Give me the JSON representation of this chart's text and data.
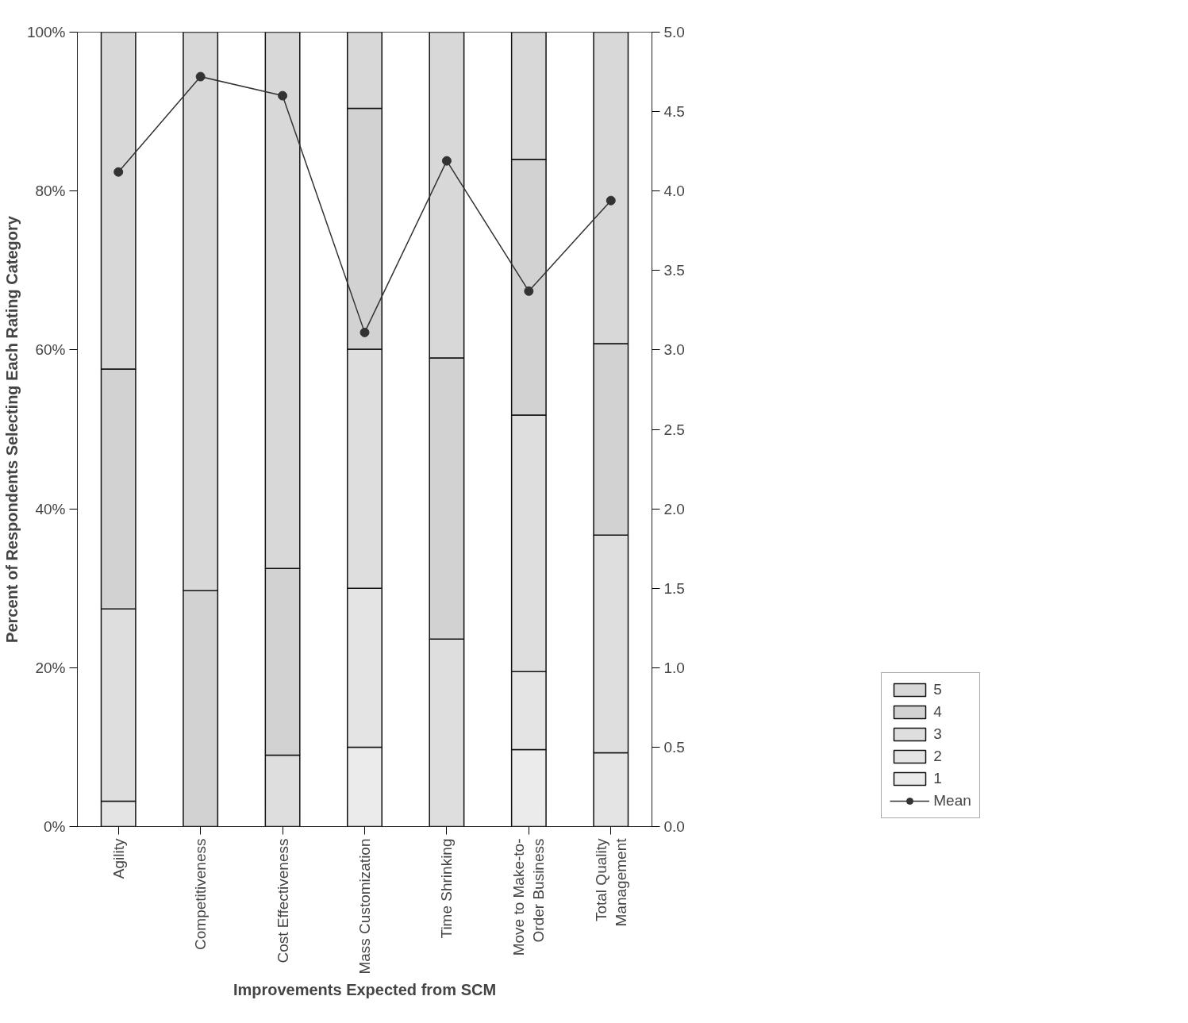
{
  "chart_data": {
    "type": "bar",
    "stacked": true,
    "xlabel": "Improvements Expected from SCM",
    "ylabel": "Percent of Respondents Selecting Each Rating Category",
    "categories": [
      "Agility",
      "Competitiveness",
      "Cost Effectiveness",
      "Mass Customization",
      "Time Shrinking",
      "Move to Make-to-Order Business",
      "Total Quality Management"
    ],
    "series": [
      {
        "name": "1",
        "color": "#ebebeb",
        "values": [
          0,
          0,
          0,
          10.0,
          0,
          9.7,
          0
        ]
      },
      {
        "name": "2",
        "color": "#e4e4e4",
        "values": [
          3.2,
          0,
          0,
          20.0,
          0,
          9.8,
          9.3
        ]
      },
      {
        "name": "3",
        "color": "#dedede",
        "values": [
          24.2,
          0,
          9.0,
          30.1,
          23.6,
          32.3,
          27.4
        ]
      },
      {
        "name": "4",
        "color": "#d2d2d2",
        "values": [
          30.2,
          29.7,
          23.5,
          30.3,
          35.4,
          32.2,
          24.1
        ]
      },
      {
        "name": "5",
        "color": "#d8d8d8",
        "values": [
          42.4,
          70.3,
          67.5,
          9.6,
          41.0,
          16.0,
          39.2
        ]
      },
      {
        "name": "Mean",
        "type": "line",
        "axis": "y2",
        "color": "#333333",
        "marker": "circle",
        "values": [
          4.12,
          4.72,
          4.6,
          3.11,
          4.19,
          3.37,
          3.94
        ]
      }
    ],
    "ylim": [
      0,
      100
    ],
    "yticks": [
      {
        "value": 0,
        "label": "0%"
      },
      {
        "value": 20,
        "label": "20%"
      },
      {
        "value": 40,
        "label": "40%"
      },
      {
        "value": 60,
        "label": "60%"
      },
      {
        "value": 80,
        "label": "80%"
      },
      {
        "value": 100,
        "label": "100%"
      }
    ],
    "y2lim": [
      0,
      5
    ],
    "y2ticks": [
      {
        "value": 0,
        "label": "0.0"
      },
      {
        "value": 0.5,
        "label": "0.5"
      },
      {
        "value": 1,
        "label": "1.0"
      },
      {
        "value": 1.5,
        "label": "1.5"
      },
      {
        "value": 2,
        "label": "2.0"
      },
      {
        "value": 2.5,
        "label": "2.5"
      },
      {
        "value": 3,
        "label": "3.0"
      },
      {
        "value": 3.5,
        "label": "3.5"
      },
      {
        "value": 4,
        "label": "4.0"
      },
      {
        "value": 4.5,
        "label": "4.5"
      },
      {
        "value": 5,
        "label": "5.0"
      }
    ],
    "grid": false,
    "legend": "right"
  }
}
